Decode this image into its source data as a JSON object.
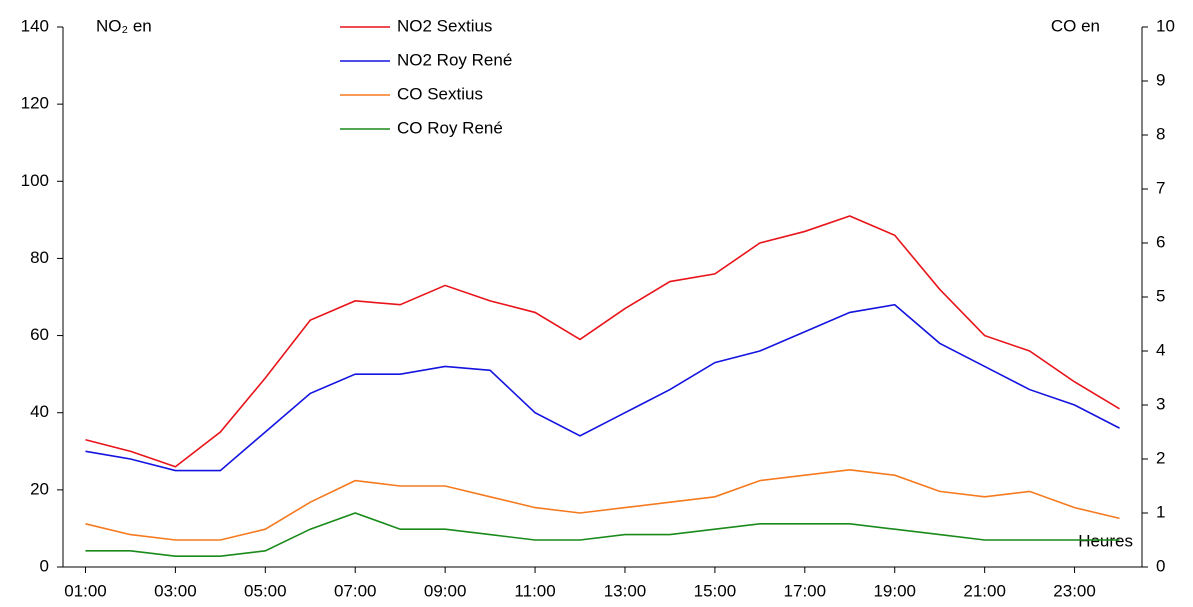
{
  "chart_data": {
    "type": "line",
    "y_label": "NO₂ en",
    "y2_label": "CO en",
    "x_label": "Heures",
    "categories": [
      "01:00",
      null,
      "03:00",
      null,
      "05:00",
      null,
      "07:00",
      null,
      "09:00",
      null,
      "11:00",
      null,
      "13:00",
      null,
      "15:00",
      null,
      "17:00",
      null,
      "19:00",
      null,
      "21:00",
      null,
      "23:00",
      null
    ],
    "series": [
      {
        "name": "NO2 Sextius",
        "color": "#e8141a",
        "values": [
          33,
          30,
          26,
          35,
          49,
          64,
          69,
          68,
          73,
          69,
          66,
          59,
          67,
          74,
          76,
          84,
          87,
          91,
          86,
          72,
          60,
          56,
          48,
          41
        ]
      },
      {
        "name": "NO2 Roy René",
        "color": "#1414e0",
        "values": [
          30,
          28,
          25,
          25,
          35,
          45,
          50,
          50,
          52,
          51,
          40,
          34,
          40,
          46,
          53,
          56,
          61,
          66,
          68,
          58,
          52,
          46,
          42,
          36
        ]
      },
      {
        "name": "CO Sextius",
        "color": "#f57a1f",
        "axis": "y2",
        "values": [
          0.8,
          0.6,
          0.5,
          0.5,
          0.7,
          1.2,
          1.6,
          1.5,
          1.5,
          1.3,
          1.1,
          1.0,
          1.1,
          1.2,
          1.3,
          1.6,
          1.7,
          1.8,
          1.7,
          1.4,
          1.3,
          1.4,
          1.1,
          0.9
        ]
      },
      {
        "name": "CO Roy René",
        "color": "#1a8a1a",
        "axis": "y2",
        "values": [
          0.3,
          0.3,
          0.2,
          0.2,
          0.3,
          0.7,
          1.0,
          0.7,
          0.7,
          0.6,
          0.5,
          0.5,
          0.6,
          0.6,
          0.7,
          0.8,
          0.8,
          0.8,
          0.7,
          0.6,
          0.5,
          0.5,
          0.5,
          0.5
        ]
      }
    ],
    "ylim": [
      0,
      140
    ],
    "yticks": [
      0,
      20,
      40,
      60,
      80,
      100,
      120,
      140
    ],
    "y2lim": [
      0,
      10
    ],
    "y2ticks": [
      0,
      1,
      2,
      3,
      4,
      5,
      6,
      7,
      8,
      9,
      10
    ]
  }
}
